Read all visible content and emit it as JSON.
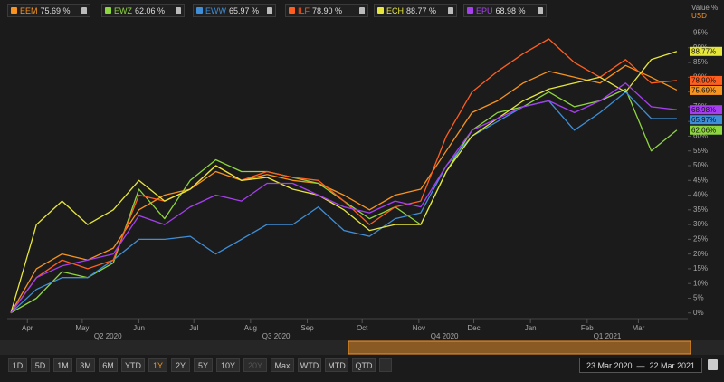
{
  "chart_data": {
    "type": "line",
    "y_axis_title": "Value %",
    "currency": "USD",
    "x": [
      "2020-03-23",
      "2020-04-06",
      "2020-04-20",
      "2020-05-04",
      "2020-05-18",
      "2020-06-01",
      "2020-06-15",
      "2020-06-29",
      "2020-07-13",
      "2020-07-27",
      "2020-08-10",
      "2020-08-24",
      "2020-09-07",
      "2020-09-21",
      "2020-10-05",
      "2020-10-19",
      "2020-11-02",
      "2020-11-16",
      "2020-11-30",
      "2020-12-14",
      "2020-12-28",
      "2021-01-11",
      "2021-01-25",
      "2021-02-08",
      "2021-02-22",
      "2021-03-08",
      "2021-03-22"
    ],
    "xlim": [
      "2020-03-21",
      "2021-03-28"
    ],
    "xticks": [
      {
        "value": "2020-04-01",
        "label": "Apr"
      },
      {
        "value": "2020-05-01",
        "label": "May"
      },
      {
        "value": "2020-06-01",
        "label": "Jun"
      },
      {
        "value": "2020-07-01",
        "label": "Jul"
      },
      {
        "value": "2020-08-01",
        "label": "Aug"
      },
      {
        "value": "2020-09-01",
        "label": "Sep"
      },
      {
        "value": "2020-10-01",
        "label": "Oct"
      },
      {
        "value": "2020-11-01",
        "label": "Nov"
      },
      {
        "value": "2020-12-01",
        "label": "Dec"
      },
      {
        "value": "2021-01-01",
        "label": "Jan"
      },
      {
        "value": "2021-02-01",
        "label": "Feb"
      },
      {
        "value": "2021-03-01",
        "label": "Mar"
      }
    ],
    "quarter_ticks": [
      {
        "value": "2020-05-15",
        "label": "Q2 2020"
      },
      {
        "value": "2020-08-15",
        "label": "Q3 2020"
      },
      {
        "value": "2020-11-15",
        "label": "Q4 2020"
      },
      {
        "value": "2021-02-12",
        "label": "Q1 2021"
      }
    ],
    "ylim": [
      -1,
      97
    ],
    "yticks": [
      {
        "value": 0,
        "label": "0%"
      },
      {
        "value": 5,
        "label": "5%"
      },
      {
        "value": 10,
        "label": "10%"
      },
      {
        "value": 15,
        "label": "15%"
      },
      {
        "value": 20,
        "label": "20%"
      },
      {
        "value": 25,
        "label": "25%"
      },
      {
        "value": 30,
        "label": "30%"
      },
      {
        "value": 35,
        "label": "35%"
      },
      {
        "value": 40,
        "label": "40%"
      },
      {
        "value": 45,
        "label": "45%"
      },
      {
        "value": 50,
        "label": "50%"
      },
      {
        "value": 55,
        "label": "55%"
      },
      {
        "value": 60,
        "label": "60%"
      },
      {
        "value": 65,
        "label": "65%"
      },
      {
        "value": 70,
        "label": "70%"
      },
      {
        "value": 75,
        "label": "75%"
      },
      {
        "value": 80,
        "label": "80%"
      },
      {
        "value": 85,
        "label": "85%"
      },
      {
        "value": 90,
        "label": "90%"
      },
      {
        "value": 95,
        "label": "95%"
      }
    ],
    "grid": false,
    "series": [
      {
        "name": "EEM",
        "color": "#f7931e",
        "legend_label": "75.69 %",
        "end_label": "75.69%",
        "values": [
          0,
          15,
          20,
          18,
          22,
          35,
          40,
          42,
          48,
          45,
          47,
          45,
          44,
          40,
          35,
          40,
          42,
          55,
          68,
          72,
          78,
          82,
          80,
          78,
          84,
          80,
          75.69
        ]
      },
      {
        "name": "EWZ",
        "color": "#8ed63f",
        "legend_label": "62.06 %",
        "end_label": "62.06%",
        "values": [
          0,
          5,
          14,
          12,
          17,
          42,
          32,
          45,
          52,
          48,
          48,
          46,
          44,
          38,
          32,
          36,
          30,
          48,
          62,
          68,
          70,
          75,
          70,
          72,
          76,
          55,
          62.06
        ]
      },
      {
        "name": "EWW",
        "color": "#3f8fd8",
        "legend_label": "65.97 %",
        "end_label": "65.97%",
        "values": [
          0,
          8,
          12,
          12,
          18,
          25,
          25,
          26,
          20,
          25,
          30,
          30,
          36,
          28,
          26,
          32,
          34,
          50,
          60,
          65,
          70,
          72,
          62,
          68,
          75,
          66,
          65.97
        ]
      },
      {
        "name": "ILF",
        "color": "#ff5e1f",
        "legend_label": "78.90 %",
        "end_label": "78.90%",
        "values": [
          0,
          12,
          18,
          15,
          18,
          40,
          38,
          42,
          50,
          45,
          48,
          46,
          45,
          38,
          30,
          36,
          38,
          60,
          75,
          82,
          88,
          93,
          85,
          80,
          86,
          78,
          78.9
        ]
      },
      {
        "name": "ECH",
        "color": "#e6e63c",
        "legend_label": "88.77 %",
        "end_label": "88.77%",
        "values": [
          0,
          30,
          38,
          30,
          35,
          45,
          38,
          42,
          50,
          45,
          46,
          42,
          40,
          35,
          28,
          30,
          30,
          48,
          60,
          66,
          72,
          76,
          78,
          80,
          75,
          86,
          88.77
        ]
      },
      {
        "name": "EPU",
        "color": "#a63ff0",
        "legend_label": "68.98 %",
        "end_label": "68.98%",
        "values": [
          0,
          12,
          16,
          18,
          20,
          33,
          30,
          36,
          40,
          38,
          44,
          44,
          40,
          36,
          34,
          38,
          36,
          50,
          62,
          66,
          70,
          72,
          68,
          72,
          78,
          70,
          68.98
        ]
      }
    ]
  },
  "toolbar": {
    "periods": [
      "1D",
      "5D",
      "1M",
      "3M",
      "6M",
      "YTD",
      "1Y",
      "2Y",
      "5Y",
      "10Y",
      "20Y",
      "Max",
      "WTD",
      "MTD",
      "QTD"
    ],
    "selected_index": 6,
    "disabled_index": 10,
    "range_start": "23 Mar 2020",
    "range_separator": "—",
    "range_end": "22 Mar 2021"
  }
}
